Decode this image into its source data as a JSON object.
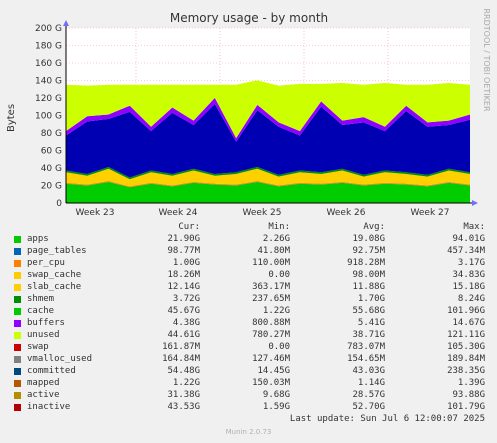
{
  "chart_data": {
    "type": "area",
    "title": "Memory usage - by month",
    "ylabel": "Bytes",
    "side_text": "RRDTOOL / TOBI OETIKER",
    "y_ticks": [
      "0",
      "20 G",
      "40 G",
      "60 G",
      "80 G",
      "100 G",
      "120 G",
      "140 G",
      "160 G",
      "180 G",
      "200 G"
    ],
    "ylim": [
      0,
      200
    ],
    "x_ticks": [
      "Week 23",
      "Week 24",
      "Week 25",
      "Week 26",
      "Week 27"
    ],
    "grid": true,
    "stacked": true,
    "series": [
      {
        "name": "apps",
        "color": "#00cc00",
        "values": [
          22,
          20,
          24,
          18,
          22,
          19,
          23,
          21,
          20,
          24,
          19,
          22,
          21,
          23,
          20,
          22,
          21,
          19,
          23,
          20
        ]
      },
      {
        "name": "page_tables",
        "color": "#0066b3",
        "values": [
          0.1,
          0.1,
          0.1,
          0.1,
          0.1,
          0.1,
          0.1,
          0.1,
          0.1,
          0.1,
          0.1,
          0.1,
          0.1,
          0.1,
          0.1,
          0.1,
          0.1,
          0.1,
          0.1,
          0.1
        ]
      },
      {
        "name": "per_cpu",
        "color": "#ff8000",
        "values": [
          1,
          1,
          1,
          1,
          1,
          1,
          1,
          1,
          1,
          1,
          1,
          1,
          1,
          1,
          1,
          1,
          1,
          1,
          1,
          1
        ]
      },
      {
        "name": "swap_cache",
        "color": "#ffcc00",
        "values": [
          0.1,
          0.1,
          0.1,
          0.1,
          0.1,
          0.1,
          0.1,
          0.1,
          0.1,
          0.1,
          0.1,
          0.1,
          0.1,
          0.1,
          0.1,
          0.1,
          0.1,
          0.1,
          0.1,
          0.1
        ]
      },
      {
        "name": "slab_cache",
        "color": "#ffd000",
        "values": [
          12,
          10,
          14,
          8,
          12,
          11,
          13,
          9,
          12,
          14,
          10,
          12,
          11,
          13,
          9,
          12,
          11,
          10,
          13,
          12
        ]
      },
      {
        "name": "shmem",
        "color": "#008f00",
        "values": [
          2,
          2,
          2,
          2,
          2,
          2,
          2,
          2,
          2,
          2,
          2,
          2,
          2,
          2,
          2,
          2,
          2,
          2,
          2,
          2
        ]
      },
      {
        "name": "cache",
        "color": "#0000b3",
        "values": [
          40,
          60,
          55,
          75,
          45,
          70,
          50,
          80,
          35,
          65,
          55,
          40,
          75,
          50,
          60,
          45,
          70,
          55,
          50,
          60
        ]
      },
      {
        "name": "buffers",
        "color": "#8f00ff",
        "values": [
          5,
          6,
          5,
          7,
          5,
          6,
          5,
          7,
          4,
          6,
          5,
          5,
          6,
          5,
          6,
          5,
          6,
          5,
          5,
          6
        ]
      },
      {
        "name": "unused",
        "color": "#ccff00",
        "values": [
          53,
          35,
          34,
          24,
          48,
          26,
          41,
          15,
          61,
          28,
          42,
          54,
          20,
          43,
          37,
          50,
          24,
          43,
          43,
          34
        ]
      },
      {
        "name": "swap",
        "color": "#cc0000",
        "values": [
          0,
          0,
          0,
          0,
          0,
          0,
          0,
          0,
          0,
          0,
          0,
          0,
          0,
          0,
          0,
          0,
          0,
          0,
          0,
          0
        ]
      },
      {
        "name": "vmalloc_used",
        "color": "#808080",
        "values": []
      },
      {
        "name": "committed",
        "color": "#00487d",
        "values": []
      },
      {
        "name": "mapped",
        "color": "#b35a00",
        "values": []
      },
      {
        "name": "active",
        "color": "#b38f00",
        "values": []
      },
      {
        "name": "inactive",
        "color": "#b30000",
        "values": []
      }
    ]
  },
  "legend": {
    "headers": [
      "Cur:",
      "Min:",
      "Avg:",
      "Max:"
    ],
    "rows": [
      {
        "name": "apps",
        "color": "#00cc00",
        "cur": "21.90G",
        "min": "2.26G",
        "avg": "19.08G",
        "max": "94.01G"
      },
      {
        "name": "page_tables",
        "color": "#0066b3",
        "cur": "98.77M",
        "min": "41.80M",
        "avg": "92.75M",
        "max": "457.34M"
      },
      {
        "name": "per_cpu",
        "color": "#ff8000",
        "cur": "1.00G",
        "min": "110.00M",
        "avg": "918.28M",
        "max": "3.17G"
      },
      {
        "name": "swap_cache",
        "color": "#ffcc00",
        "cur": "18.26M",
        "min": "0.00",
        "avg": "98.00M",
        "max": "34.83G"
      },
      {
        "name": "slab_cache",
        "color": "#ffd000",
        "cur": "12.14G",
        "min": "363.17M",
        "avg": "11.88G",
        "max": "15.18G"
      },
      {
        "name": "shmem",
        "color": "#008f00",
        "cur": "3.72G",
        "min": "237.65M",
        "avg": "1.70G",
        "max": "8.24G"
      },
      {
        "name": "cache",
        "color": "#00cc00",
        "cur": "45.67G",
        "min": "1.22G",
        "avg": "55.68G",
        "max": "101.96G"
      },
      {
        "name": "buffers",
        "color": "#8f00ff",
        "cur": "4.38G",
        "min": "800.88M",
        "avg": "5.41G",
        "max": "14.67G"
      },
      {
        "name": "unused",
        "color": "#ccff00",
        "cur": "44.61G",
        "min": "780.27M",
        "avg": "38.71G",
        "max": "121.11G"
      },
      {
        "name": "swap",
        "color": "#cc0000",
        "cur": "161.87M",
        "min": "0.00",
        "avg": "783.07M",
        "max": "105.30G"
      },
      {
        "name": "vmalloc_used",
        "color": "#808080",
        "cur": "164.84M",
        "min": "127.46M",
        "avg": "154.65M",
        "max": "189.84M"
      },
      {
        "name": "committed",
        "color": "#00487d",
        "cur": "54.48G",
        "min": "14.45G",
        "avg": "43.03G",
        "max": "238.35G"
      },
      {
        "name": "mapped",
        "color": "#b35a00",
        "cur": "1.22G",
        "min": "150.03M",
        "avg": "1.14G",
        "max": "1.39G"
      },
      {
        "name": "active",
        "color": "#b38f00",
        "cur": "31.38G",
        "min": "9.68G",
        "avg": "28.57G",
        "max": "93.88G"
      },
      {
        "name": "inactive",
        "color": "#b30000",
        "cur": "43.53G",
        "min": "1.59G",
        "avg": "52.70G",
        "max": "101.79G"
      }
    ]
  },
  "footer": {
    "last_update": "Last update: Sun Jul  6 12:00:07 2025",
    "munin": "Munin 2.0.73"
  }
}
